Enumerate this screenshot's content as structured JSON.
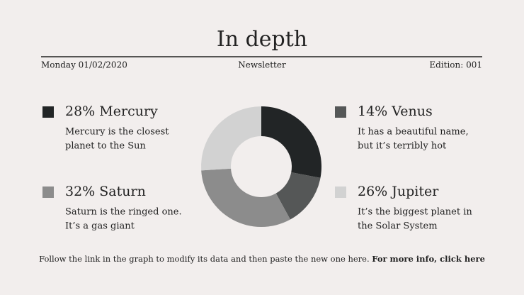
{
  "header": {
    "title": "In depth",
    "date": "Monday 01/02/2020",
    "section": "Newsletter",
    "edition": "Edition: 001"
  },
  "chart_data": {
    "type": "pie",
    "donut": true,
    "categories": [
      "Mercury",
      "Venus",
      "Saturn",
      "Jupiter"
    ],
    "values": [
      28,
      14,
      32,
      26
    ],
    "value_labels": [
      "28%",
      "14%",
      "32%",
      "26%"
    ],
    "colors": [
      "#222526",
      "#555757",
      "#8c8c8c",
      "#d2d2d2"
    ],
    "descriptions": [
      [
        "Mercury is the closest",
        "planet to the Sun"
      ],
      [
        "It has a beautiful name,",
        "but it’s terribly hot"
      ],
      [
        "Saturn is the ringed one.",
        "It’s a gas giant"
      ],
      [
        "It’s the biggest planet in",
        "the Solar System"
      ]
    ]
  },
  "footer": {
    "text": "Follow the link in the graph to modify its data and then paste the new one here.",
    "link": "For more info, click here"
  }
}
